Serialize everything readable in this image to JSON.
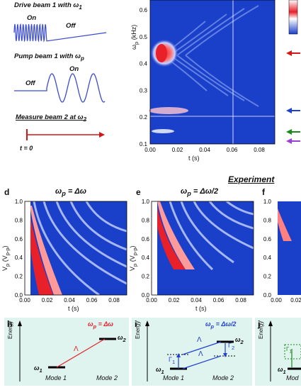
{
  "left_panel": {
    "drive_label": "Drive beam 1 with ω",
    "drive_sub": "1",
    "on": "On",
    "off": "Off",
    "pump_label": "Pump beam 1 with ω",
    "pump_sub": "p",
    "pump_on": "On",
    "pump_off": "Off",
    "measure_label": "Measure beam 2 at ω",
    "measure_sub": "2",
    "t0": "t = 0"
  },
  "top_map": {
    "ylabel": "ω",
    "ylabel_sub": "p",
    "ylabel_unit": " (kHz)",
    "xlabel": "t (s)",
    "yticks": [
      "0.1",
      "0.2",
      "0.3",
      "0.4",
      "0.5",
      "0.6"
    ],
    "xticks": [
      "0.00",
      "0.02",
      "0.04",
      "0.06",
      "0.08"
    ]
  },
  "experiment_label": "Experiment",
  "maps": [
    {
      "letter": "d",
      "title": "ω",
      "title_sub": "p",
      "title_rest": " = Δω"
    },
    {
      "letter": "e",
      "title": "ω",
      "title_sub": "p",
      "title_rest": " = Δω/2"
    },
    {
      "letter": "f",
      "title": "",
      "title_sub": "",
      "title_rest": ""
    }
  ],
  "map_axes": {
    "ylabel": "V",
    "ylabel_sub": "p",
    "ylabel_unit": " (V",
    "ylabel_unit_sub": "p-p",
    "ylabel_close": ")",
    "xlabel": "t (s)",
    "yticks": [
      "0.0",
      "0.2",
      "0.4",
      "0.6",
      "0.8",
      "1.0"
    ],
    "xticks": [
      "0.00",
      "0.02",
      "0.04",
      "0.06",
      "0.08"
    ]
  },
  "diagrams": [
    {
      "letter": "h",
      "energy": "Energy",
      "w1": "ω",
      "w1_sub": "1",
      "w2": "ω",
      "w2_sub": "2",
      "mode1": "Mode 1",
      "mode2": "Mode 2",
      "lambda": "Λ",
      "cond": "ω",
      "cond_sub": "p",
      "cond_rest": " = Δω"
    },
    {
      "letter": "i",
      "energy": "Energy",
      "w1": "ω",
      "w1_sub": "1",
      "w2": "ω",
      "w2_sub": "2",
      "mode1": "Mode 1",
      "mode2": "Mode 2",
      "lambda": "Λ",
      "lambda2": "Λ",
      "g1": "Γ",
      "g1_sub": "1",
      "g2": "Γ",
      "g2_sub": "2",
      "cond": "ω",
      "cond_sub": "p",
      "cond_rest": " = Δω/2"
    },
    {
      "letter": "j",
      "energy": "Energy",
      "w1": "ω",
      "w1_sub": "1",
      "mode1": "Mod",
      "g1": "Γ",
      "g1_sub": "1"
    }
  ],
  "colors": {
    "map_bg": "#1a3fc8",
    "hot": "#e8202a",
    "teal_box": "#dff3ef",
    "arrow_red": "#d01818",
    "arrow_blue": "#2040d0",
    "arrow_green": "#1a8a1a",
    "arrow_purple": "#9a40d8",
    "drive_blue": "#3a4bd0"
  }
}
